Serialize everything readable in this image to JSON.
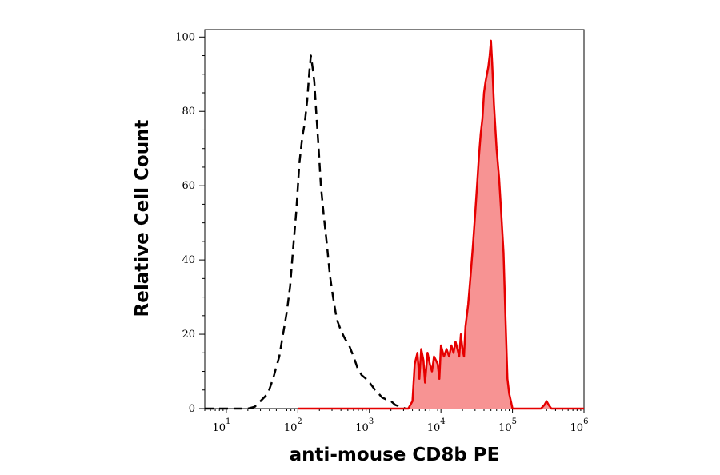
{
  "chart_data": {
    "type": "area",
    "xlabel": "anti-mouse CD8b PE",
    "ylabel": "Relative Cell Count",
    "x_scale": "log",
    "xlim": [
      5,
      1000000
    ],
    "ylim": [
      0,
      102
    ],
    "x_ticks": [
      {
        "base": "10",
        "exp": "1",
        "value": 10
      },
      {
        "base": "10",
        "exp": "2",
        "value": 100
      },
      {
        "base": "10",
        "exp": "3",
        "value": 1000
      },
      {
        "base": "10",
        "exp": "4",
        "value": 10000
      },
      {
        "base": "10",
        "exp": "5",
        "value": 100000
      },
      {
        "base": "10",
        "exp": "6",
        "value": 1000000
      }
    ],
    "y_ticks": [
      "0",
      "20",
      "40",
      "60",
      "80",
      "100"
    ],
    "colors": {
      "control": "#000000",
      "stained_line": "#e60000",
      "stained_fill": "#f79393"
    },
    "series": [
      {
        "style": "dashed-black",
        "x": [
          5,
          20,
          25,
          30,
          38,
          45,
          55,
          62,
          70,
          78,
          85,
          95,
          105,
          115,
          125,
          135,
          145,
          152,
          160,
          170,
          180,
          195,
          210,
          230,
          255,
          280,
          310,
          350,
          400,
          450,
          520,
          600,
          680,
          780,
          900,
          1000,
          1100,
          1200,
          1350,
          1500,
          1700,
          2000,
          2300,
          2700,
          3200
        ],
        "y": [
          0,
          0,
          0.5,
          2,
          4,
          8,
          14,
          20,
          26,
          33,
          42,
          53,
          66,
          73,
          77,
          83,
          91,
          95,
          92,
          88,
          80,
          70,
          60,
          52,
          44,
          36,
          30,
          24,
          21,
          19,
          17,
          14,
          11,
          9,
          8,
          7,
          6,
          5,
          4,
          3,
          2.5,
          2,
          1,
          0.5,
          0
        ]
      },
      {
        "style": "red-filled",
        "x": [
          100,
          3500,
          4000,
          4300,
          4700,
          5000,
          5300,
          5700,
          6000,
          6500,
          7000,
          7500,
          8000,
          8500,
          9000,
          9500,
          10000,
          11000,
          12000,
          13000,
          14000,
          15000,
          16000,
          17000,
          18000,
          19000,
          20000,
          21000,
          22000,
          24000,
          26000,
          28000,
          30000,
          32000,
          34000,
          36000,
          38000,
          40000,
          42000,
          44000,
          46000,
          48000,
          50000,
          52000,
          55000,
          60000,
          65000,
          70000,
          75000,
          80000,
          85000,
          90000,
          95000,
          100000,
          200000,
          250000,
          280000,
          300000,
          320000,
          350000,
          1000000
        ],
        "y": [
          0,
          0,
          2,
          12,
          15,
          8,
          16,
          13,
          7,
          15,
          12,
          10,
          14,
          13,
          12,
          8,
          17,
          14,
          16,
          14,
          17,
          15,
          18,
          16,
          14,
          20,
          16,
          14,
          22,
          28,
          36,
          44,
          52,
          60,
          68,
          74,
          78,
          85,
          88,
          90,
          92,
          95,
          99,
          93,
          82,
          70,
          62,
          52,
          42,
          24,
          8,
          4,
          2,
          0,
          0,
          0,
          1,
          2,
          1,
          0,
          0
        ]
      }
    ]
  }
}
